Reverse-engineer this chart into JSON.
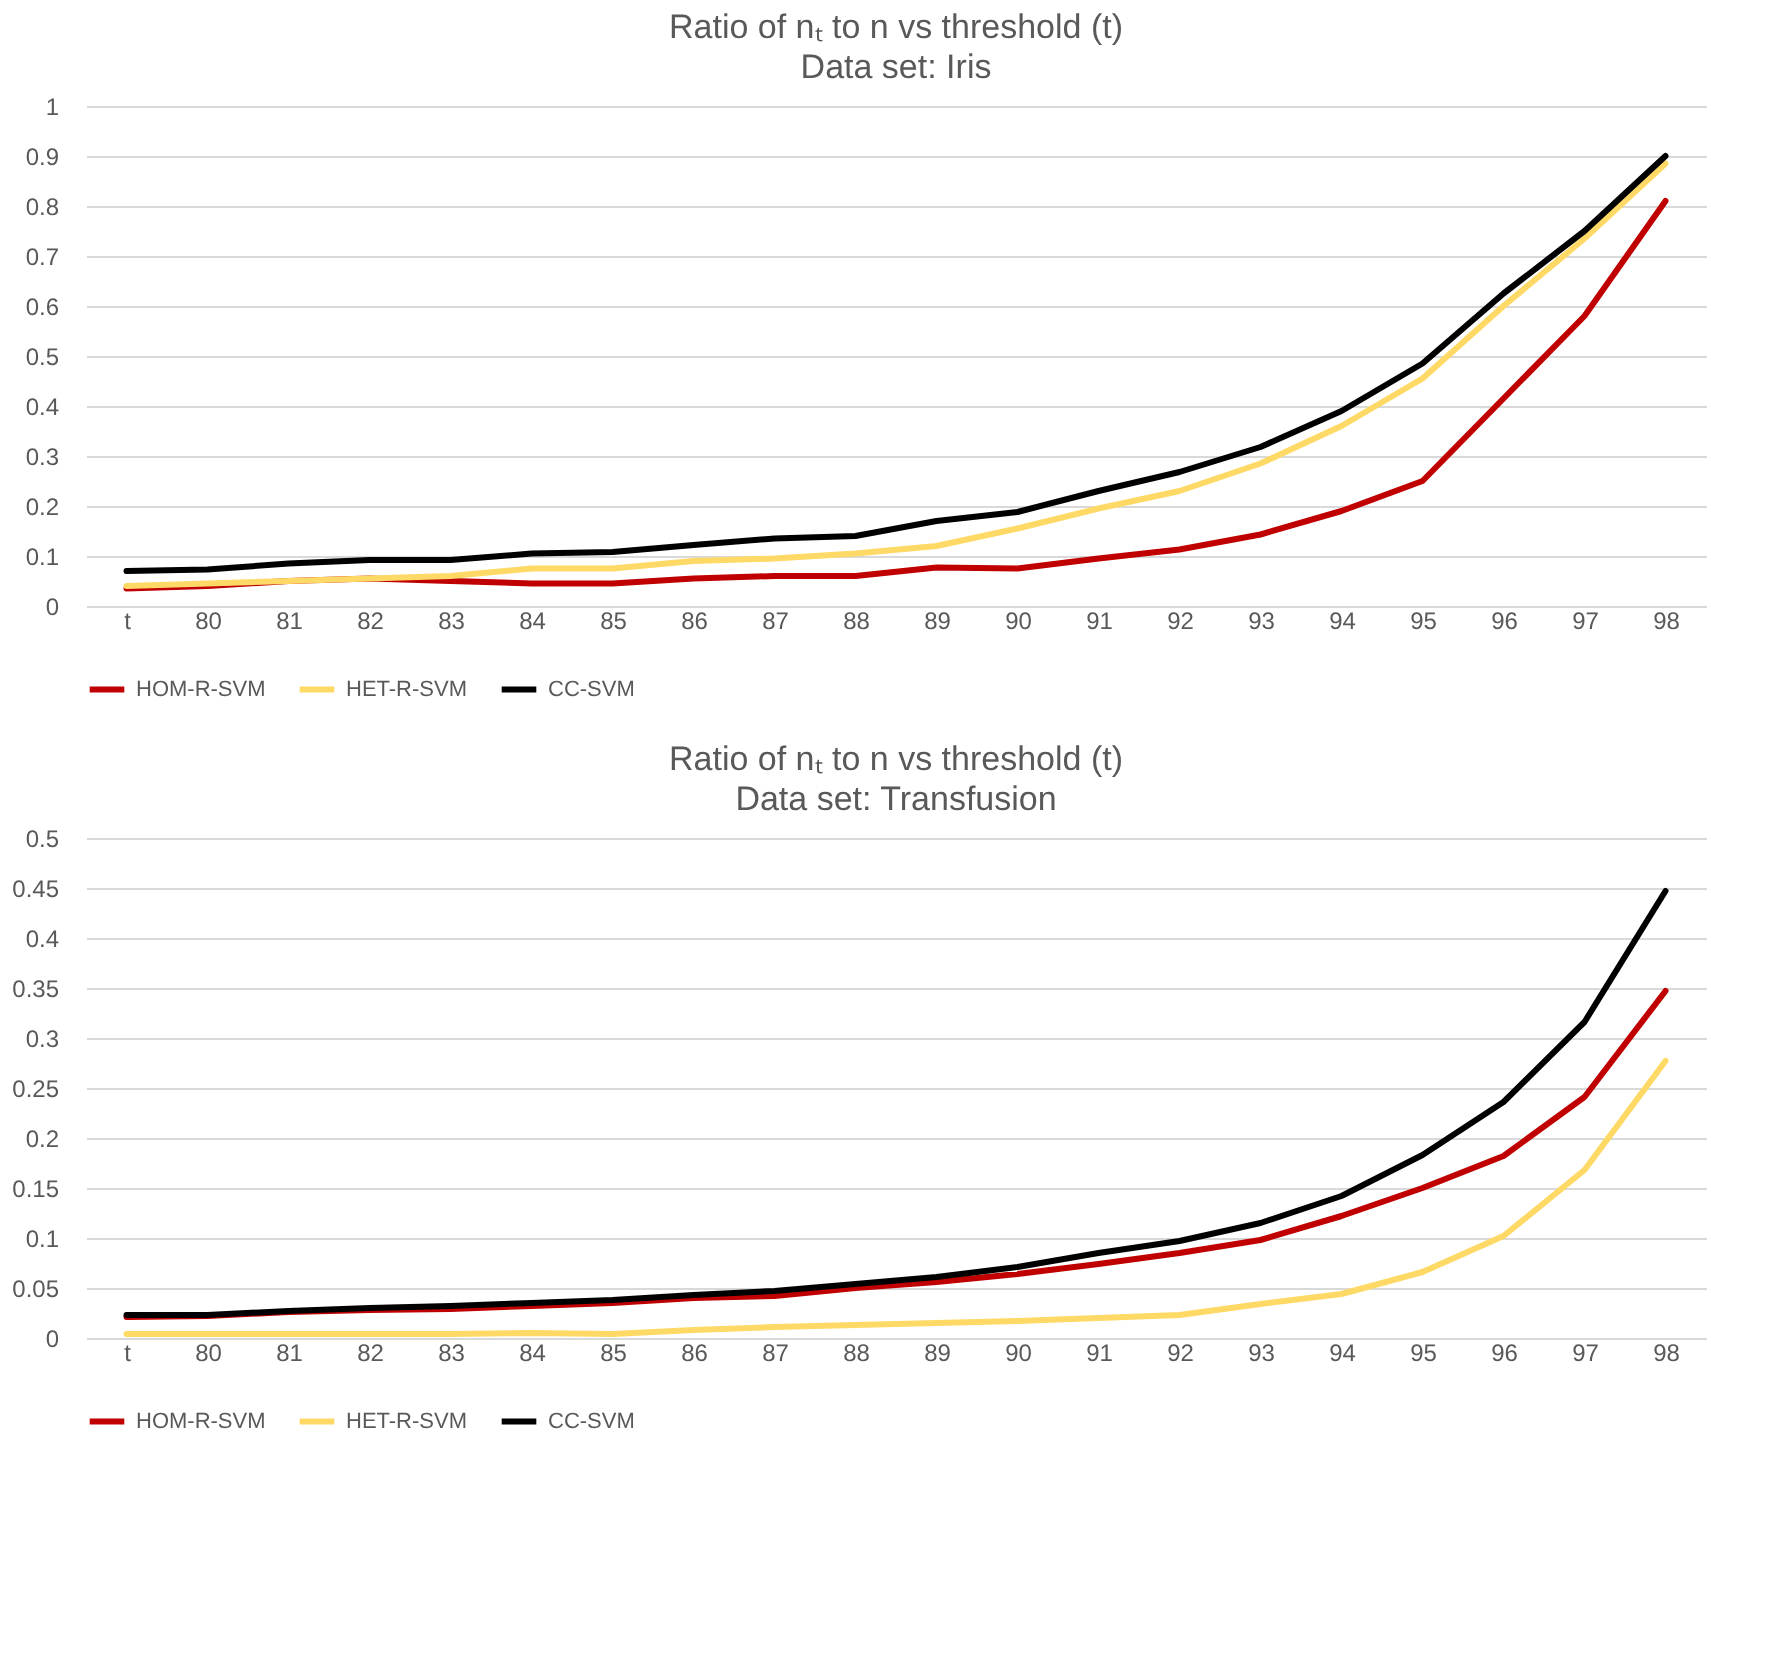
{
  "chart_data": [
    {
      "type": "line",
      "title": "Ratio of nₜ to n vs threshold (t)",
      "subtitle": "Data set: Iris",
      "categories": [
        "t",
        "80",
        "81",
        "82",
        "83",
        "84",
        "85",
        "86",
        "87",
        "88",
        "89",
        "90",
        "91",
        "92",
        "93",
        "94",
        "95",
        "96",
        "97",
        "98"
      ],
      "series": [
        {
          "name": "HOM-R-SVM",
          "color": "#c00000",
          "values": [
            0.035,
            0.04,
            0.05,
            0.055,
            0.05,
            0.045,
            0.045,
            0.055,
            0.06,
            0.06,
            0.077,
            0.075,
            0.095,
            0.113,
            0.143,
            0.19,
            0.25,
            0.415,
            0.58,
            0.81
          ]
        },
        {
          "name": "HET-R-SVM",
          "color": "#ffd966",
          "values": [
            0.04,
            0.045,
            0.05,
            0.055,
            0.06,
            0.075,
            0.075,
            0.09,
            0.095,
            0.105,
            0.12,
            0.155,
            0.195,
            0.23,
            0.285,
            0.36,
            0.455,
            0.6,
            0.735,
            0.885
          ]
        },
        {
          "name": "CC-SVM",
          "color": "#000000",
          "values": [
            0.07,
            0.073,
            0.085,
            0.092,
            0.092,
            0.105,
            0.108,
            0.122,
            0.135,
            0.14,
            0.17,
            0.188,
            0.23,
            0.268,
            0.318,
            0.39,
            0.485,
            0.625,
            0.75,
            0.9
          ]
        }
      ],
      "ylim": [
        0,
        1
      ],
      "yticks": [
        0,
        0.1,
        0.2,
        0.3,
        0.4,
        0.5,
        0.6,
        0.7,
        0.8,
        0.9,
        1
      ],
      "grid": "y",
      "legend": "bottom",
      "marker": "none",
      "line_style": "solid"
    },
    {
      "type": "line",
      "title": "Ratio of nₜ to n vs threshold (t)",
      "subtitle": "Data set: Transfusion",
      "categories": [
        "t",
        "80",
        "81",
        "82",
        "83",
        "84",
        "85",
        "86",
        "87",
        "88",
        "89",
        "90",
        "91",
        "92",
        "93",
        "94",
        "95",
        "96",
        "97",
        "98"
      ],
      "series": [
        {
          "name": "HOM-R-SVM",
          "color": "#c00000",
          "values": [
            0.021,
            0.022,
            0.026,
            0.028,
            0.029,
            0.032,
            0.035,
            0.04,
            0.042,
            0.05,
            0.056,
            0.064,
            0.074,
            0.085,
            0.098,
            0.122,
            0.15,
            0.182,
            0.241,
            0.347
          ]
        },
        {
          "name": "HET-R-SVM",
          "color": "#ffd966",
          "values": [
            0.004,
            0.004,
            0.004,
            0.004,
            0.004,
            0.005,
            0.004,
            0.008,
            0.011,
            0.013,
            0.015,
            0.017,
            0.02,
            0.023,
            0.034,
            0.044,
            0.066,
            0.102,
            0.168,
            0.277
          ]
        },
        {
          "name": "CC-SVM",
          "color": "#000000",
          "values": [
            0.023,
            0.023,
            0.027,
            0.03,
            0.032,
            0.035,
            0.038,
            0.043,
            0.047,
            0.054,
            0.061,
            0.071,
            0.085,
            0.097,
            0.115,
            0.142,
            0.183,
            0.236,
            0.316,
            0.447
          ]
        }
      ],
      "ylim": [
        0,
        0.5
      ],
      "yticks": [
        0,
        0.05,
        0.1,
        0.15,
        0.2,
        0.25,
        0.3,
        0.35,
        0.4,
        0.45,
        0.5
      ],
      "grid": "y",
      "legend": "bottom",
      "marker": "none",
      "line_style": "solid"
    }
  ]
}
